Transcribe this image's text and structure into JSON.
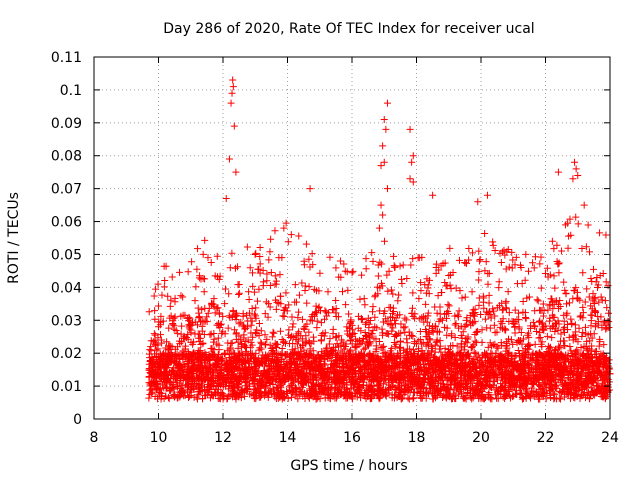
{
  "chart_data": {
    "type": "scatter",
    "title": "Day 286 of 2020, Rate Of TEC Index for receiver ucal",
    "xlabel": "GPS time / hours",
    "ylabel": "ROTI / TECUs",
    "xlim": [
      8,
      24
    ],
    "ylim": [
      0,
      0.11
    ],
    "grid": true,
    "marker": "+",
    "series_color": "#ff0000",
    "x_ticks": [
      {
        "value": 8,
        "label": "8"
      },
      {
        "value": 10,
        "label": "10"
      },
      {
        "value": 12,
        "label": "12"
      },
      {
        "value": 14,
        "label": "14"
      },
      {
        "value": 16,
        "label": "16"
      },
      {
        "value": 18,
        "label": "18"
      },
      {
        "value": 20,
        "label": "20"
      },
      {
        "value": 22,
        "label": "22"
      },
      {
        "value": 24,
        "label": "24"
      }
    ],
    "y_ticks": [
      {
        "value": 0,
        "label": "0"
      },
      {
        "value": 0.01,
        "label": "0.01"
      },
      {
        "value": 0.02,
        "label": "0.02"
      },
      {
        "value": 0.03,
        "label": "0.03"
      },
      {
        "value": 0.04,
        "label": "0.04"
      },
      {
        "value": 0.05,
        "label": "0.05"
      },
      {
        "value": 0.06,
        "label": "0.06"
      },
      {
        "value": 0.07,
        "label": "0.07"
      },
      {
        "value": 0.08,
        "label": "0.08"
      },
      {
        "value": 0.09,
        "label": "0.09"
      },
      {
        "value": 0.1,
        "label": "0.1"
      },
      {
        "value": 0.11,
        "label": "0.11"
      }
    ],
    "x_start": 9.7,
    "x_end": 24.0,
    "band_profile": [
      [
        9.7,
        0.034
      ],
      [
        10.0,
        0.045
      ],
      [
        10.5,
        0.05
      ],
      [
        11.0,
        0.048
      ],
      [
        11.5,
        0.058
      ],
      [
        12.0,
        0.052
      ],
      [
        12.5,
        0.05
      ],
      [
        13.0,
        0.055
      ],
      [
        13.5,
        0.058
      ],
      [
        14.0,
        0.06
      ],
      [
        14.5,
        0.058
      ],
      [
        15.0,
        0.052
      ],
      [
        15.5,
        0.05
      ],
      [
        16.0,
        0.045
      ],
      [
        16.5,
        0.05
      ],
      [
        17.0,
        0.055
      ],
      [
        17.5,
        0.05
      ],
      [
        18.0,
        0.05
      ],
      [
        18.5,
        0.048
      ],
      [
        19.0,
        0.052
      ],
      [
        19.5,
        0.05
      ],
      [
        20.0,
        0.058
      ],
      [
        20.5,
        0.055
      ],
      [
        21.0,
        0.052
      ],
      [
        21.5,
        0.05
      ],
      [
        22.0,
        0.052
      ],
      [
        22.5,
        0.06
      ],
      [
        23.0,
        0.062
      ],
      [
        23.5,
        0.06
      ],
      [
        24.0,
        0.055
      ]
    ],
    "notable_points": [
      {
        "x": 12.3,
        "y": 0.103
      },
      {
        "x": 12.32,
        "y": 0.101
      },
      {
        "x": 12.28,
        "y": 0.099
      },
      {
        "x": 12.25,
        "y": 0.096
      },
      {
        "x": 12.35,
        "y": 0.089
      },
      {
        "x": 12.2,
        "y": 0.079
      },
      {
        "x": 12.4,
        "y": 0.075
      },
      {
        "x": 12.1,
        "y": 0.067
      },
      {
        "x": 17.1,
        "y": 0.096
      },
      {
        "x": 17.0,
        "y": 0.091
      },
      {
        "x": 17.05,
        "y": 0.088
      },
      {
        "x": 16.95,
        "y": 0.083
      },
      {
        "x": 17.0,
        "y": 0.078
      },
      {
        "x": 16.9,
        "y": 0.077
      },
      {
        "x": 17.1,
        "y": 0.07
      },
      {
        "x": 16.9,
        "y": 0.065
      },
      {
        "x": 16.95,
        "y": 0.062
      },
      {
        "x": 16.85,
        "y": 0.058
      },
      {
        "x": 17.8,
        "y": 0.088
      },
      {
        "x": 17.9,
        "y": 0.08
      },
      {
        "x": 17.85,
        "y": 0.078
      },
      {
        "x": 17.8,
        "y": 0.073
      },
      {
        "x": 17.9,
        "y": 0.072
      },
      {
        "x": 18.5,
        "y": 0.068
      },
      {
        "x": 14.7,
        "y": 0.07
      },
      {
        "x": 19.9,
        "y": 0.066
      },
      {
        "x": 20.2,
        "y": 0.068
      },
      {
        "x": 22.4,
        "y": 0.075
      },
      {
        "x": 22.9,
        "y": 0.078
      },
      {
        "x": 22.95,
        "y": 0.076
      },
      {
        "x": 23.0,
        "y": 0.074
      },
      {
        "x": 22.85,
        "y": 0.073
      },
      {
        "x": 23.2,
        "y": 0.065
      }
    ]
  }
}
